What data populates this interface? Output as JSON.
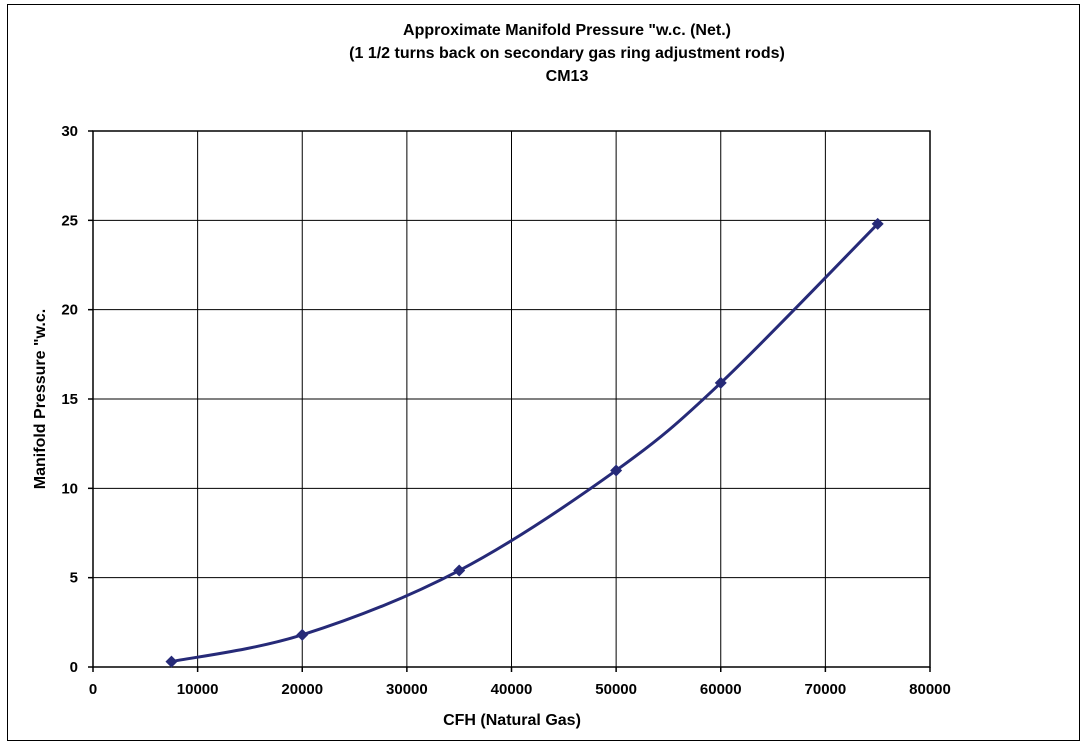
{
  "chart_data": {
    "type": "line",
    "title_lines": [
      "Approximate  Manifold Pressure \"w.c. (Net.)",
      "(1 1/2 turns back on secondary gas ring adjustment rods)",
      "CM13"
    ],
    "xlabel": "CFH (Natural Gas)",
    "ylabel": "Manifold Pressure \"w.c.",
    "xlim": [
      0,
      80000
    ],
    "ylim": [
      0,
      30
    ],
    "x_ticks": [
      "0",
      "10000",
      "20000",
      "30000",
      "40000",
      "50000",
      "60000",
      "70000",
      "80000"
    ],
    "y_ticks": [
      "0",
      "5",
      "10",
      "15",
      "20",
      "25",
      "30"
    ],
    "grid": true,
    "series": [
      {
        "color": "#262a78",
        "marker": "diamond",
        "points": [
          {
            "x": 7500,
            "y": 0.3
          },
          {
            "x": 20000,
            "y": 1.8
          },
          {
            "x": 35000,
            "y": 5.4
          },
          {
            "x": 50000,
            "y": 11.0
          },
          {
            "x": 60000,
            "y": 15.9
          },
          {
            "x": 75000,
            "y": 24.8
          }
        ]
      }
    ]
  }
}
